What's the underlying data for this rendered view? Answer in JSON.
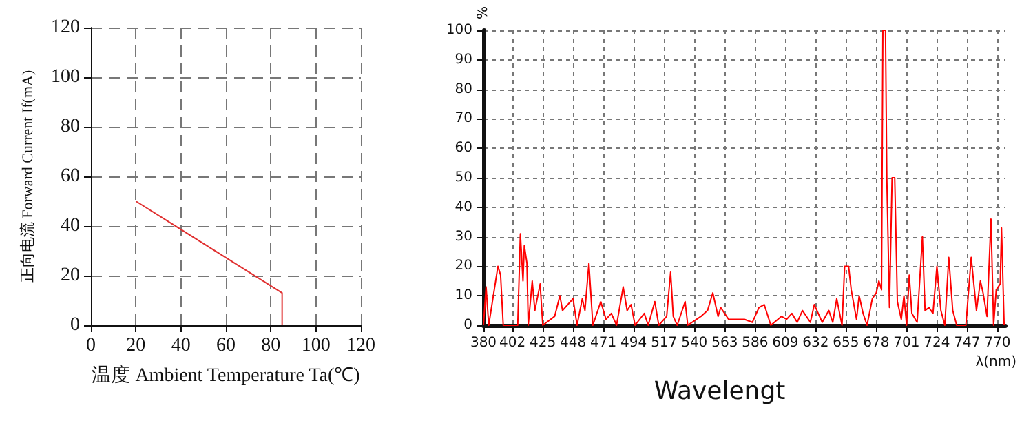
{
  "chart_data": [
    {
      "type": "line",
      "xlabel": "温度 Ambient Temperature Ta(℃)",
      "ylabel": "正向电流 Forward Current If(mA)",
      "x": [
        20,
        85,
        85
      ],
      "values": [
        50,
        13,
        0
      ],
      "color": "#e03030",
      "xlim": [
        0,
        120
      ],
      "ylim": [
        0,
        120
      ],
      "xticks": [
        0,
        20,
        40,
        60,
        80,
        100,
        120
      ],
      "yticks": [
        0,
        20,
        40,
        60,
        80,
        100,
        120
      ],
      "grid": true,
      "marker": "none"
    },
    {
      "type": "line",
      "title": "Wavelengt",
      "xlabel": "λ(nm)",
      "ylabel": "%",
      "color": "#ff0000",
      "marker": "none",
      "grid": true,
      "x": [
        380,
        382,
        384,
        391,
        393,
        395,
        406,
        408,
        410,
        411,
        413,
        414,
        417,
        419,
        423,
        425,
        434,
        438,
        440,
        444,
        448,
        451,
        455,
        457,
        460,
        463,
        469,
        473,
        477,
        481,
        486,
        489,
        492,
        495,
        502,
        505,
        510,
        513,
        519,
        522,
        524,
        527,
        533,
        535,
        545,
        550,
        554,
        558,
        560,
        566,
        578,
        584,
        589,
        593,
        598,
        606,
        610,
        614,
        618,
        622,
        628,
        631,
        637,
        642,
        645,
        648,
        652,
        654,
        657,
        659,
        661,
        663,
        665,
        668,
        671,
        675,
        678,
        680,
        682,
        683,
        685,
        686,
        688,
        690,
        692,
        694,
        695,
        697,
        699,
        701,
        703,
        705,
        709,
        713,
        715,
        718,
        721,
        724,
        727,
        730,
        733,
        736,
        739,
        746,
        750,
        754,
        757,
        759,
        762,
        765,
        767,
        769,
        772,
        773,
        775
      ],
      "values": [
        0,
        13,
        0,
        20,
        17,
        0,
        0,
        31,
        15,
        27,
        21,
        0,
        15,
        5,
        14,
        0,
        3,
        10,
        5,
        7,
        9,
        0,
        9,
        5,
        21,
        0,
        8,
        2,
        4,
        0,
        13,
        5,
        7,
        0,
        4,
        0,
        8,
        0,
        3,
        18,
        3,
        0,
        8,
        0,
        3,
        5,
        11,
        3,
        6,
        2,
        2,
        1,
        6,
        7,
        0,
        3,
        2,
        4,
        1,
        5,
        1,
        7,
        1,
        5,
        1,
        9,
        0,
        20,
        20,
        12,
        7,
        2,
        10,
        4,
        0,
        9,
        11,
        15,
        12,
        100,
        100,
        50,
        6,
        50,
        50,
        8,
        6,
        2,
        10,
        0,
        17,
        4,
        1,
        30,
        5,
        6,
        4,
        20,
        5,
        0,
        23,
        5,
        0,
        0,
        23,
        5,
        15,
        11,
        3,
        36,
        0,
        12,
        14,
        33,
        0
      ],
      "xlim": [
        380,
        776
      ],
      "ylim": [
        0,
        100
      ],
      "xticks": [
        380,
        402,
        425,
        448,
        471,
        494,
        517,
        540,
        563,
        586,
        609,
        632,
        655,
        678,
        701,
        724,
        747,
        770
      ],
      "yticks": [
        0,
        10,
        20,
        30,
        40,
        50,
        60,
        70,
        80,
        90,
        100
      ]
    }
  ]
}
